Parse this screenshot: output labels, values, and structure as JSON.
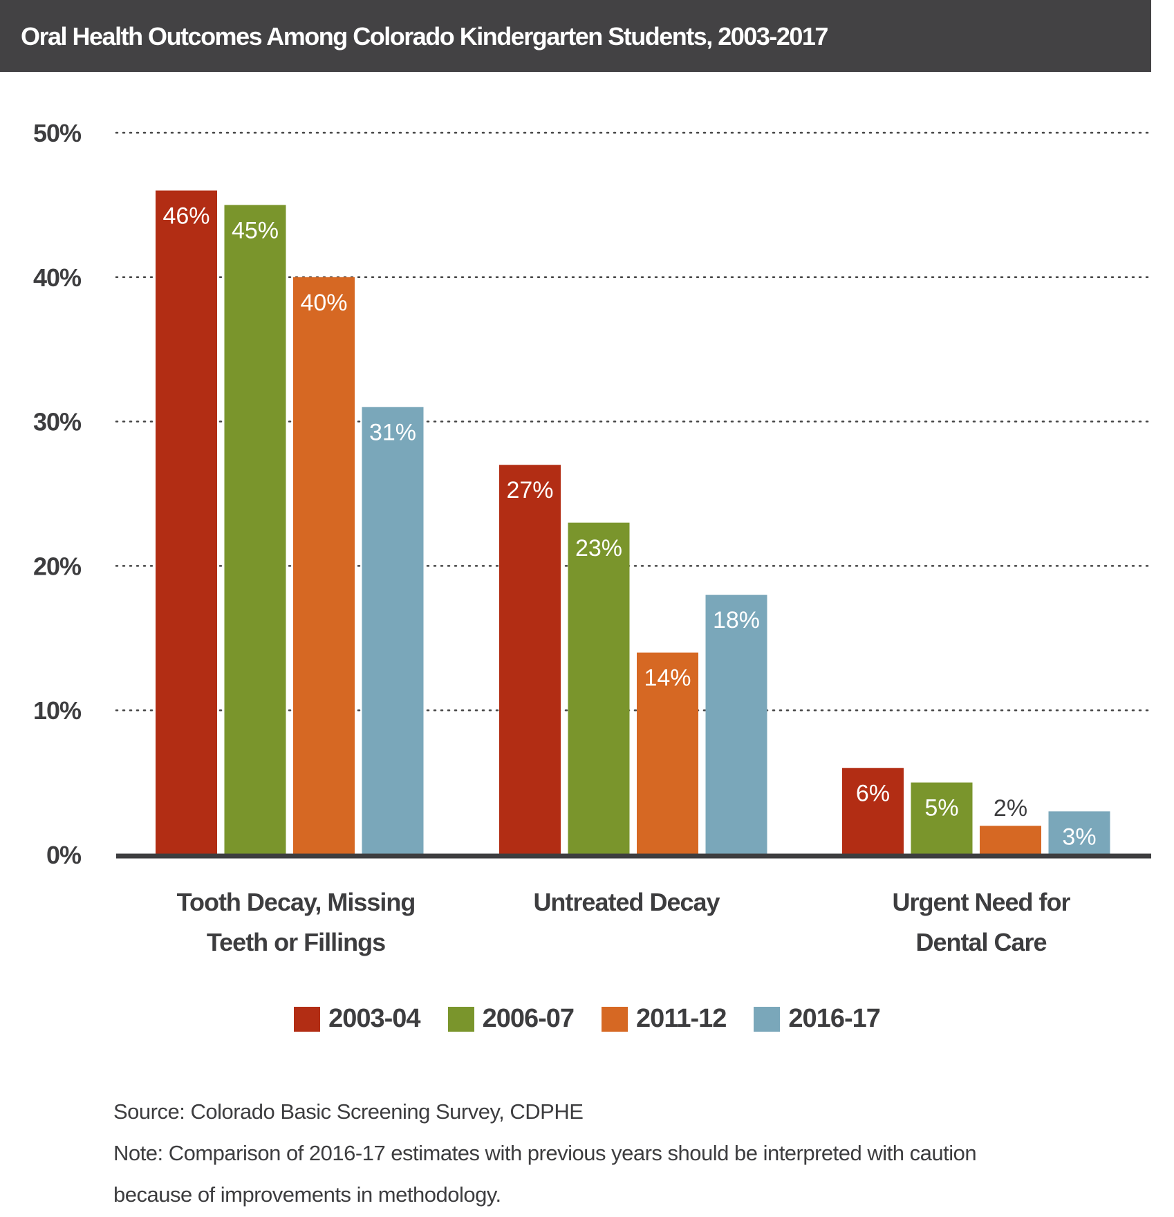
{
  "title": "Oral Health Outcomes Among Colorado Kindergarten Students, 2003-2017",
  "chart_data": {
    "type": "bar",
    "title": "Oral Health Outcomes Among Colorado Kindergarten Students, 2003-2017",
    "categories": [
      "Tooth Decay, Missing Teeth or Fillings",
      "Untreated Decay",
      "Urgent Need for Dental Care"
    ],
    "category_lines": [
      [
        "Tooth Decay, Missing",
        "Teeth or Fillings"
      ],
      [
        "Untreated Decay"
      ],
      [
        "Urgent Need for",
        "Dental Care"
      ]
    ],
    "series": [
      {
        "name": "2003-04",
        "color": "#b22d14",
        "values": [
          46,
          27,
          6
        ],
        "labels": [
          "46%",
          "27%",
          "6%"
        ]
      },
      {
        "name": "2006-07",
        "color": "#7a952c",
        "values": [
          45,
          23,
          5
        ],
        "labels": [
          "45%",
          "23%",
          "5%"
        ]
      },
      {
        "name": "2011-12",
        "color": "#d66823",
        "values": [
          40,
          14,
          2
        ],
        "labels": [
          "40%",
          "14%",
          "2%"
        ]
      },
      {
        "name": "2016-17",
        "color": "#7aa7ba",
        "values": [
          31,
          18,
          3
        ],
        "labels": [
          "31%",
          "18%",
          "3%"
        ]
      }
    ],
    "yticks": [
      "0%",
      "10%",
      "20%",
      "30%",
      "40%",
      "50%"
    ],
    "ylim": [
      0,
      50
    ],
    "grid": true,
    "legend": "bottom-center",
    "xlabel": "",
    "ylabel": ""
  },
  "footer": {
    "source": "Source: Colorado Basic Screening Survey, CDPHE",
    "note_line1": "Note: Comparison of 2016-17 estimates with previous years should be interpreted with caution",
    "note_line2": "because of improvements in methodology."
  }
}
